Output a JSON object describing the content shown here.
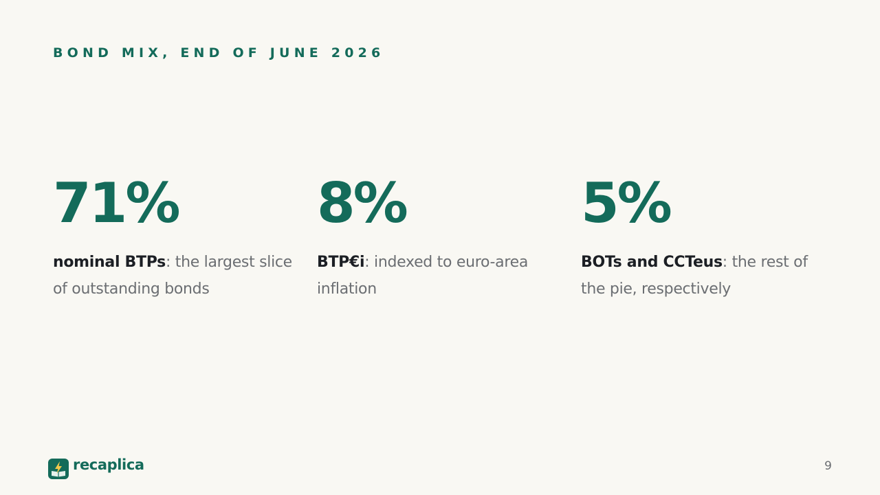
{
  "slide": {
    "eyebrow": "BOND MIX, END OF JUNE 2026",
    "page_number": "9"
  },
  "stats": [
    {
      "value": "71%",
      "term": "nominal BTPs",
      "text": ": the largest slice of outstanding bonds"
    },
    {
      "value": "8%",
      "term": "BTP€i",
      "text": ": indexed to euro-area inflation"
    },
    {
      "value": "5%",
      "term": "BOTs and CCTeus",
      "text": ": the rest of the pie, respectively"
    }
  ],
  "brand": {
    "name": "recaplica",
    "icon": "lightning-book-icon"
  },
  "colors": {
    "background": "#f9f8f3",
    "accent": "#146b5a",
    "accent_light": "#f2c94c",
    "term_text": "#1c1f24",
    "body_text": "#6b6e72"
  }
}
